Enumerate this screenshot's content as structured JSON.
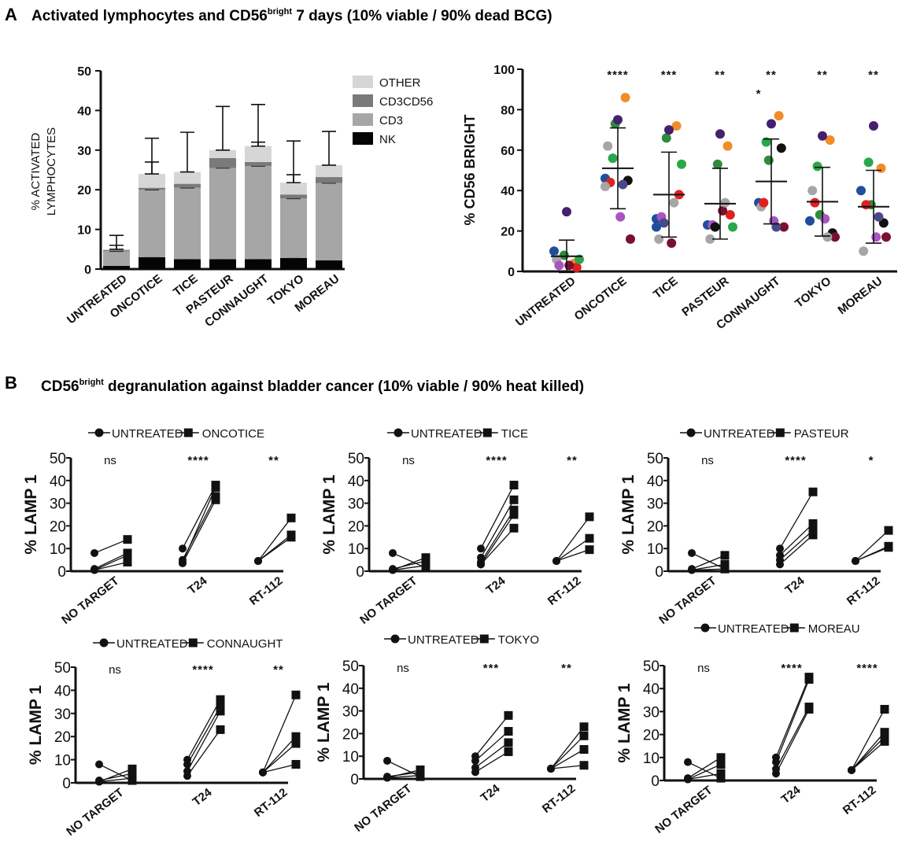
{
  "panel_a": {
    "letter": "A",
    "title_pre": "Activated lymphocytes and CD56",
    "title_sup": "bright",
    "title_post": " 7 days (10% viable / 90% dead BCG)"
  },
  "panel_b": {
    "letter": "B",
    "title_pre": "CD56",
    "title_sup": "bright",
    "title_post": " degranulation against bladder cancer (10% viable / 90% heat killed)"
  },
  "chart_data": [
    {
      "id": "stacked",
      "type": "bar",
      "stacked": true,
      "title": "",
      "ylabel_line1": "% ACTIVATED",
      "ylabel_line2": "LYMPHOCYTES",
      "ylim": [
        0,
        50
      ],
      "yticks": [
        0,
        10,
        20,
        30,
        40,
        50
      ],
      "categories": [
        "UNTREATED",
        "ONCOTICE",
        "TICE",
        "PASTEUR",
        "CONNAUGHT",
        "TOKYO",
        "MOREAU"
      ],
      "legend": [
        "OTHER",
        "CD3CD56",
        "CD3",
        "NK"
      ],
      "colors": {
        "NK": "#050505",
        "CD3": "#a6a6a6",
        "CD3CD56": "#7a7a7a",
        "OTHER": "#d6d6d6"
      },
      "series": [
        {
          "name": "NK",
          "values": [
            0.8,
            3,
            2.5,
            2.5,
            2.5,
            2.8,
            2.2
          ],
          "err": [
            0.5,
            3.5,
            3.5,
            2.2,
            4,
            4.5,
            3
          ]
        },
        {
          "name": "CD3",
          "values": [
            3.7,
            17,
            18,
            23,
            23.5,
            15,
            19.5
          ],
          "err": [
            1.5,
            7,
            3,
            4,
            6,
            6,
            3
          ]
        },
        {
          "name": "CD3CD56",
          "values": [
            0.3,
            0.5,
            1,
            2.5,
            1,
            1,
            1.5
          ],
          "err": [
            0,
            0,
            0,
            0,
            0,
            0,
            0
          ]
        },
        {
          "name": "OTHER",
          "values": [
            0.2,
            3.5,
            3,
            2,
            4,
            3,
            3
          ],
          "err": [
            3.5,
            9,
            10,
            11,
            10.5,
            10.5,
            8.5
          ]
        }
      ]
    },
    {
      "id": "scatter56",
      "type": "scatter",
      "ylabel": "% CD56 BRIGHT",
      "ylim": [
        0,
        100
      ],
      "yticks": [
        0,
        20,
        40,
        60,
        80,
        100
      ],
      "categories": [
        "UNTREATED",
        "ONCOTICE",
        "TICE",
        "PASTEUR",
        "CONNAUGHT",
        "TOKYO",
        "MOREAU"
      ],
      "significance": [
        "",
        "****",
        "***",
        "**",
        "**",
        "**",
        "**"
      ],
      "extra_significance": {
        "category": "CONNAUGHT",
        "text": "*"
      },
      "means": [
        7.5,
        51,
        38,
        33.5,
        44.5,
        34.5,
        32
      ],
      "sd": [
        8,
        20,
        21,
        17.5,
        21,
        17,
        18
      ],
      "donor_colors": [
        "#1f4e9c",
        "#2e8b3a",
        "#f28c28",
        "#a6a6a6",
        "#45206e",
        "#111111",
        "#e02020",
        "#ffffff",
        "#a855c2",
        "#7a1030",
        "#2aa74a",
        "#4a4a8a"
      ],
      "points": [
        [
          [
            0,
            10
          ],
          [
            1,
            8
          ],
          [
            2,
            4
          ],
          [
            3,
            6
          ],
          [
            4,
            29.5
          ],
          [
            6,
            2
          ],
          [
            8,
            3
          ],
          [
            9,
            3
          ],
          [
            10,
            6
          ]
        ],
        [
          [
            0,
            46
          ],
          [
            1,
            73
          ],
          [
            2,
            86
          ],
          [
            3,
            62
          ],
          [
            4,
            75
          ],
          [
            5,
            45
          ],
          [
            6,
            44
          ],
          [
            8,
            27
          ],
          [
            9,
            16
          ],
          [
            10,
            56
          ],
          [
            11,
            43
          ],
          [
            3,
            42
          ]
        ],
        [
          [
            0,
            26
          ],
          [
            1,
            66
          ],
          [
            2,
            72
          ],
          [
            3,
            16
          ],
          [
            4,
            70
          ],
          [
            6,
            38
          ],
          [
            8,
            27
          ],
          [
            9,
            14
          ],
          [
            10,
            53
          ],
          [
            11,
            24
          ],
          [
            3,
            34
          ],
          [
            0,
            22
          ]
        ],
        [
          [
            0,
            23
          ],
          [
            1,
            53
          ],
          [
            2,
            62
          ],
          [
            3,
            16
          ],
          [
            4,
            68
          ],
          [
            6,
            28
          ],
          [
            8,
            23
          ],
          [
            9,
            30
          ],
          [
            10,
            22
          ],
          [
            5,
            22
          ],
          [
            3,
            34
          ]
        ],
        [
          [
            0,
            34
          ],
          [
            1,
            55
          ],
          [
            2,
            77
          ],
          [
            3,
            32
          ],
          [
            4,
            73
          ],
          [
            5,
            61
          ],
          [
            6,
            34
          ],
          [
            8,
            25
          ],
          [
            9,
            22
          ],
          [
            10,
            64
          ],
          [
            11,
            22
          ]
        ],
        [
          [
            0,
            25
          ],
          [
            1,
            28
          ],
          [
            2,
            65
          ],
          [
            3,
            40
          ],
          [
            4,
            67
          ],
          [
            5,
            19
          ],
          [
            6,
            34
          ],
          [
            8,
            26
          ],
          [
            9,
            17
          ],
          [
            10,
            52
          ],
          [
            3,
            17
          ]
        ],
        [
          [
            0,
            40
          ],
          [
            1,
            33
          ],
          [
            2,
            51
          ],
          [
            3,
            10
          ],
          [
            4,
            72
          ],
          [
            5,
            24
          ],
          [
            6,
            33
          ],
          [
            8,
            17
          ],
          [
            9,
            17
          ],
          [
            10,
            54
          ],
          [
            11,
            27
          ]
        ]
      ]
    },
    {
      "id": "lamp_oncotice",
      "type": "line",
      "ylabel": "% LAMP 1",
      "ylim": [
        0,
        50
      ],
      "yticks": [
        0,
        10,
        20,
        30,
        40,
        50
      ],
      "categories": [
        "NO TARGET",
        "T24",
        "RT-112"
      ],
      "legend": [
        "UNTREATED",
        "ONCOTICE"
      ],
      "significance": [
        "ns",
        "****",
        "**"
      ],
      "pairs": [
        [
          [
            0.5,
            4
          ],
          [
            1,
            8
          ],
          [
            8,
            14
          ],
          [
            0.5,
            7
          ]
        ],
        [
          [
            3.5,
            31.5
          ],
          [
            5,
            33
          ],
          [
            10,
            38
          ],
          [
            4,
            37
          ]
        ],
        [
          [
            4.5,
            15
          ],
          [
            4.5,
            16
          ],
          [
            4.5,
            23.5
          ]
        ]
      ]
    },
    {
      "id": "lamp_tice",
      "type": "line",
      "ylabel": "% LAMP 1",
      "ylim": [
        0,
        50
      ],
      "yticks": [
        0,
        10,
        20,
        30,
        40,
        50
      ],
      "categories": [
        "NO TARGET",
        "T24",
        "RT-112"
      ],
      "legend": [
        "UNTREATED",
        "TICE"
      ],
      "significance": [
        "ns",
        "****",
        "**"
      ],
      "pairs": [
        [
          [
            0.5,
            2.5
          ],
          [
            1,
            4.5
          ],
          [
            8,
            1.5
          ],
          [
            0.5,
            6
          ]
        ],
        [
          [
            3,
            19
          ],
          [
            4,
            27
          ],
          [
            6,
            31.5
          ],
          [
            10,
            38
          ],
          [
            3,
            25
          ]
        ],
        [
          [
            4.5,
            9.5
          ],
          [
            4.5,
            14.5
          ],
          [
            4.5,
            24
          ]
        ]
      ]
    },
    {
      "id": "lamp_pasteur",
      "type": "line",
      "ylabel": "% LAMP 1",
      "ylim": [
        0,
        50
      ],
      "yticks": [
        0,
        10,
        20,
        30,
        40,
        50
      ],
      "categories": [
        "NO TARGET",
        "T24",
        "RT-112"
      ],
      "legend": [
        "UNTREATED",
        "PASTEUR"
      ],
      "significance": [
        "ns",
        "****",
        "*"
      ],
      "pairs": [
        [
          [
            0.5,
            3
          ],
          [
            1,
            7
          ],
          [
            8,
            1
          ],
          [
            0.5,
            1
          ]
        ],
        [
          [
            3,
            16
          ],
          [
            5,
            18
          ],
          [
            7,
            21
          ],
          [
            10,
            35
          ]
        ],
        [
          [
            4.5,
            10.5
          ],
          [
            4.5,
            11
          ],
          [
            4.5,
            18
          ]
        ]
      ]
    },
    {
      "id": "lamp_connaught",
      "type": "line",
      "ylabel": "% LAMP 1",
      "ylim": [
        0,
        50
      ],
      "yticks": [
        0,
        10,
        20,
        30,
        40,
        50
      ],
      "categories": [
        "NO TARGET",
        "T24",
        "RT-112"
      ],
      "legend": [
        "UNTREATED",
        "CONNAUGHT"
      ],
      "significance": [
        "ns",
        "****",
        "**"
      ],
      "pairs": [
        [
          [
            0.5,
            2
          ],
          [
            1,
            4
          ],
          [
            8,
            1
          ],
          [
            0.5,
            6
          ]
        ],
        [
          [
            3,
            23
          ],
          [
            5,
            31
          ],
          [
            8,
            33
          ],
          [
            10,
            36
          ]
        ],
        [
          [
            4.5,
            8
          ],
          [
            4.5,
            17
          ],
          [
            4.5,
            20
          ],
          [
            4.5,
            38
          ]
        ]
      ]
    },
    {
      "id": "lamp_tokyo",
      "type": "line",
      "ylabel": "% LAMP 1",
      "ylim": [
        0,
        50
      ],
      "yticks": [
        0,
        10,
        20,
        30,
        40,
        50
      ],
      "categories": [
        "NO TARGET",
        "T24",
        "RT-112"
      ],
      "legend": [
        "UNTREATED",
        "TOKYO"
      ],
      "significance": [
        "ns",
        "***",
        "**"
      ],
      "pairs": [
        [
          [
            0.5,
            1.5
          ],
          [
            1,
            3
          ],
          [
            8,
            1
          ],
          [
            0.5,
            4
          ]
        ],
        [
          [
            3,
            12
          ],
          [
            5,
            16
          ],
          [
            8,
            21
          ],
          [
            10,
            28
          ]
        ],
        [
          [
            4.5,
            6
          ],
          [
            4.5,
            13
          ],
          [
            4.5,
            19
          ],
          [
            4.5,
            23
          ]
        ]
      ]
    },
    {
      "id": "lamp_moreau",
      "type": "line",
      "ylabel": "% LAMP 1",
      "ylim": [
        0,
        50
      ],
      "yticks": [
        0,
        10,
        20,
        30,
        40,
        50
      ],
      "categories": [
        "NO TARGET",
        "T24",
        "RT-112"
      ],
      "legend": [
        "UNTREATED",
        "MOREAU"
      ],
      "significance": [
        "ns",
        "****",
        "****"
      ],
      "pairs": [
        [
          [
            0.5,
            3
          ],
          [
            1,
            10
          ],
          [
            8,
            1
          ],
          [
            0.5,
            7
          ]
        ],
        [
          [
            3,
            31
          ],
          [
            5,
            32
          ],
          [
            8,
            44
          ],
          [
            10,
            45
          ]
        ],
        [
          [
            4.5,
            17
          ],
          [
            4.5,
            19
          ],
          [
            4.5,
            21
          ],
          [
            4.5,
            31
          ]
        ]
      ]
    }
  ]
}
